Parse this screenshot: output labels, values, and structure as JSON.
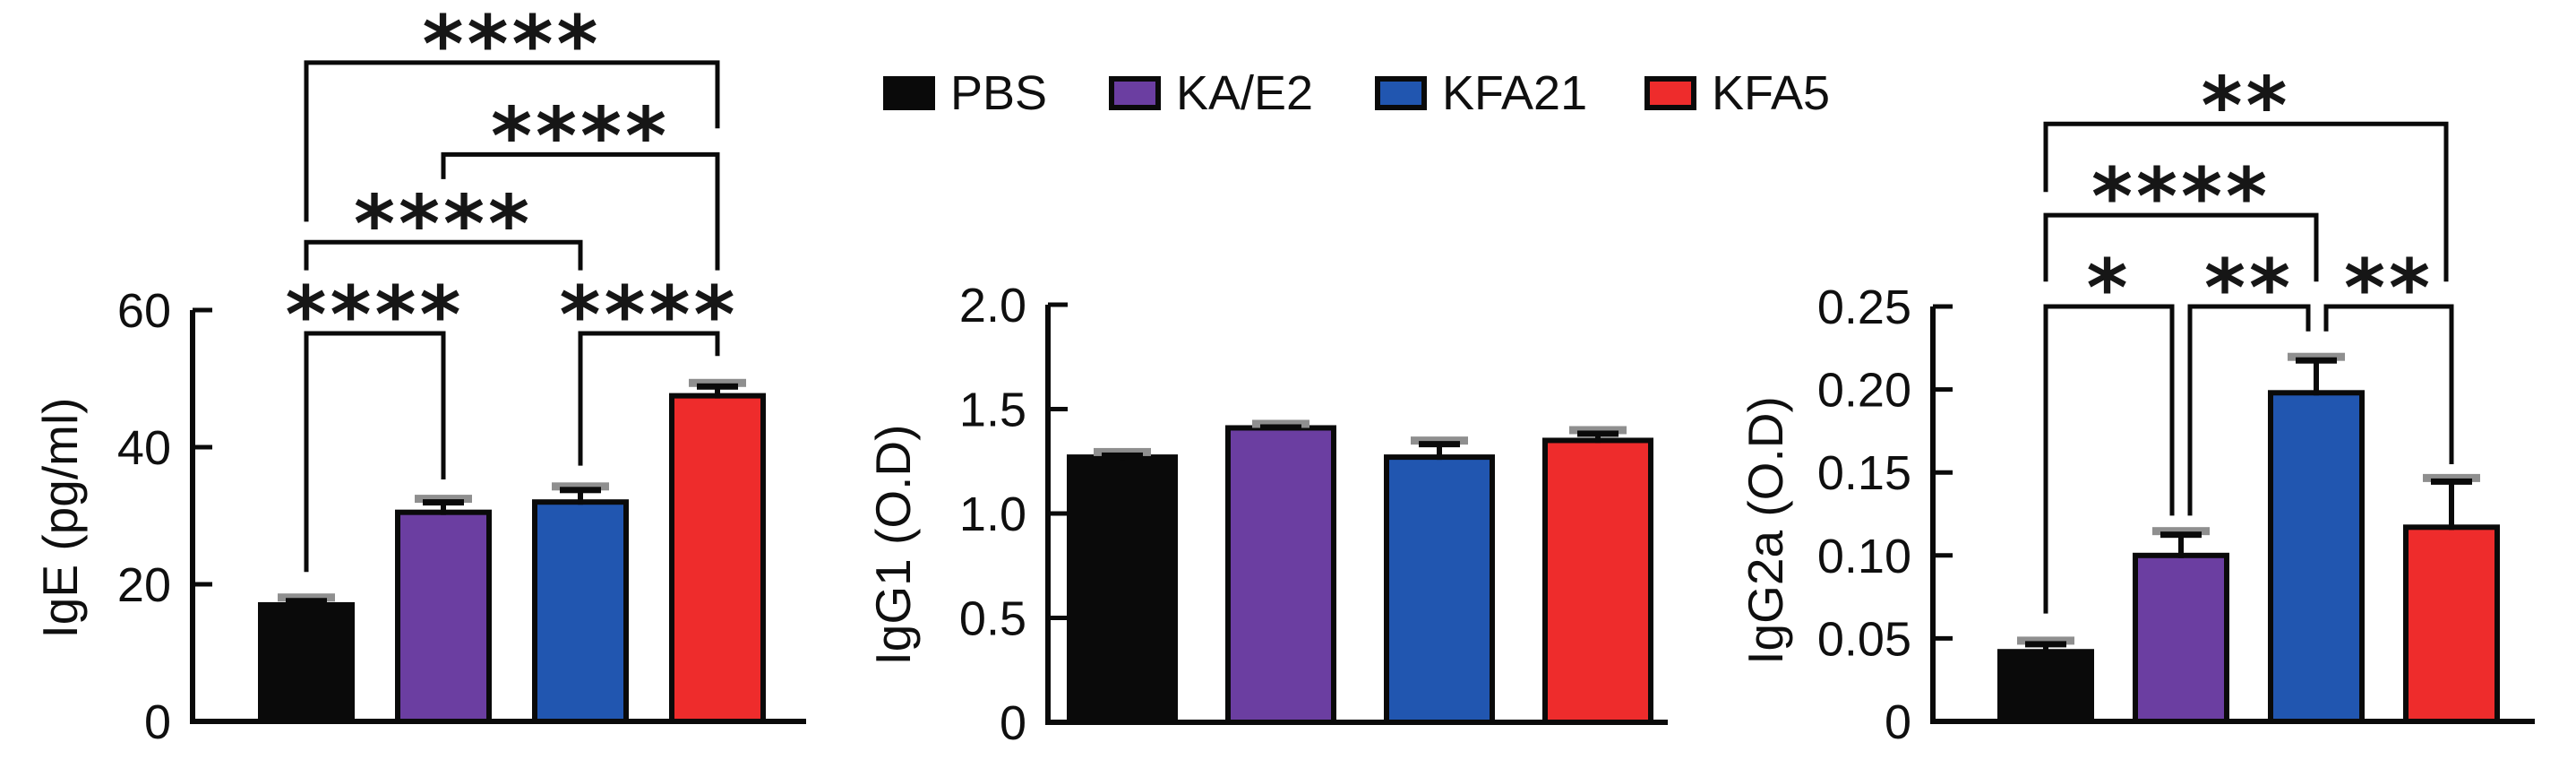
{
  "figure": {
    "background": "#ffffff",
    "description_visible_panels": 3
  },
  "legend": {
    "items": [
      {
        "label": "PBS",
        "color": "#0a0a0a"
      },
      {
        "label": "KA/E2",
        "color": "#6b3ea1"
      },
      {
        "label": "KFA21",
        "color": "#2156b0"
      },
      {
        "label": "KFA5",
        "color": "#ee2c2c"
      }
    ]
  },
  "chart_data": [
    {
      "type": "bar",
      "id": "ige",
      "ylabel": "IgE (pg/ml)",
      "categories": [
        "PBS",
        "KA/E2",
        "KFA21",
        "KFA5"
      ],
      "values": [
        17,
        30.5,
        32,
        47.5
      ],
      "errors_upper": [
        1.4,
        2.3,
        2.6,
        2.2
      ],
      "bar_colors": [
        "#0a0a0a",
        "#6b3ea1",
        "#2156b0",
        "#ee2c2c"
      ],
      "ylim": [
        0,
        60
      ],
      "yticks": [
        0,
        20,
        40,
        60
      ],
      "ytick_labels": [
        "0",
        "20",
        "40",
        "60"
      ],
      "grid": false,
      "legend_position": "top-center-shared",
      "significance": [
        {
          "between": [
            "PBS",
            "KA/E2"
          ],
          "groups": [
            0,
            1
          ],
          "label": "****",
          "level": 56.6,
          "leg_end_left": 21.8,
          "leg_end_right": 35.3
        },
        {
          "between": [
            "KFA21",
            "KFA5"
          ],
          "groups": [
            2,
            3
          ],
          "label": "****",
          "level": 56.6,
          "leg_end_left": 37.3,
          "leg_end_right": 53.3
        },
        {
          "between": [
            "PBS",
            "KFA21"
          ],
          "groups": [
            0,
            2
          ],
          "label": "****",
          "level": 69.9,
          "leg_end_left": 65.8,
          "leg_end_right": 65.8
        },
        {
          "between": [
            "KA/E2",
            "KFA5"
          ],
          "groups": [
            1,
            3
          ],
          "label": "****",
          "level": 82.7,
          "leg_end_left": 79.1,
          "leg_end_right": 65.8
        },
        {
          "between": [
            "PBS",
            "KFA5"
          ],
          "groups": [
            0,
            3
          ],
          "label": "****",
          "level": 96.1,
          "leg_end_left": 72.9,
          "leg_end_right": 86.5
        }
      ]
    },
    {
      "type": "bar",
      "id": "igg1",
      "ylabel": "IgG1 (O.D)",
      "categories": [
        "PBS",
        "KA/E2",
        "KFA21",
        "KFA5"
      ],
      "values": [
        1.27,
        1.41,
        1.27,
        1.35
      ],
      "errors_upper": [
        0.035,
        0.03,
        0.09,
        0.06
      ],
      "bar_colors": [
        "#0a0a0a",
        "#6b3ea1",
        "#2156b0",
        "#ee2c2c"
      ],
      "ylim": [
        0,
        2.0
      ],
      "yticks": [
        0,
        0.5,
        1.0,
        1.5,
        2.0
      ],
      "ytick_labels": [
        "0",
        "0.5",
        "1.0",
        "1.5",
        "2.0"
      ],
      "grid": false,
      "legend_position": "top-center-shared",
      "significance": []
    },
    {
      "type": "bar",
      "id": "igg2a",
      "ylabel": "IgG2a (O.D)",
      "categories": [
        "PBS",
        "KA/E2",
        "KFA21",
        "KFA5"
      ],
      "values": [
        0.042,
        0.1,
        0.198,
        0.117
      ],
      "errors_upper": [
        0.008,
        0.016,
        0.023,
        0.031
      ],
      "bar_colors": [
        "#0a0a0a",
        "#6b3ea1",
        "#2156b0",
        "#ee2c2c"
      ],
      "ylim": [
        0,
        0.25
      ],
      "yticks": [
        0,
        0.05,
        0.1,
        0.15,
        0.2,
        0.25
      ],
      "ytick_labels": [
        "0",
        "0.05",
        "0.10",
        "0.15",
        "0.20",
        "0.25"
      ],
      "grid": false,
      "legend_position": "top-center-shared",
      "significance": [
        {
          "between": [
            "PBS",
            "KA/E2"
          ],
          "groups": [
            0,
            1
          ],
          "label": "*",
          "level": 0.25,
          "leg_end_left": 0.065,
          "leg_end_right": 0.124,
          "dx_left": 0,
          "dx_right": -10
        },
        {
          "between": [
            "KA/E2",
            "KFA21"
          ],
          "groups": [
            1,
            2
          ],
          "label": "**",
          "level": 0.25,
          "leg_end_left": 0.124,
          "leg_end_right": 0.235,
          "dx_left": 10,
          "dx_right": -9
        },
        {
          "between": [
            "KFA21",
            "KFA5"
          ],
          "groups": [
            2,
            3
          ],
          "label": "**",
          "level": 0.25,
          "leg_end_left": 0.235,
          "leg_end_right": 0.155,
          "dx_left": 11,
          "dx_right": 0
        },
        {
          "between": [
            "PBS",
            "KFA21"
          ],
          "groups": [
            0,
            2
          ],
          "label": "****",
          "level": 0.305,
          "leg_end_left": 0.265,
          "leg_end_right": 0.265,
          "dx_left": 0,
          "dx_right": 0
        },
        {
          "between": [
            "PBS",
            "KFA5"
          ],
          "groups": [
            0,
            3
          ],
          "label": "**",
          "level": 0.36,
          "leg_end_left": 0.319,
          "leg_end_right": 0.265,
          "dx_left": 0,
          "dx_right": -6
        }
      ]
    }
  ]
}
